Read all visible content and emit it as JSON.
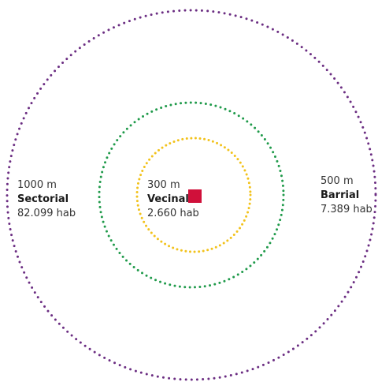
{
  "colors": {
    "sectorial_ring": "#6b2d82",
    "barrial_ring": "#1f9a4a",
    "vecinal_ring": "#f2c21b",
    "center_marker": "#d0103a"
  },
  "labels": {
    "sectorial": {
      "distance": "1000 m",
      "name": "Sectorial",
      "population": "82.099 hab"
    },
    "vecinal": {
      "distance": "300 m",
      "name": "Vecinal",
      "population": "2.660 hab"
    },
    "barrial": {
      "distance": "500 m",
      "name": "Barrial",
      "population": "7.389 hab"
    }
  }
}
